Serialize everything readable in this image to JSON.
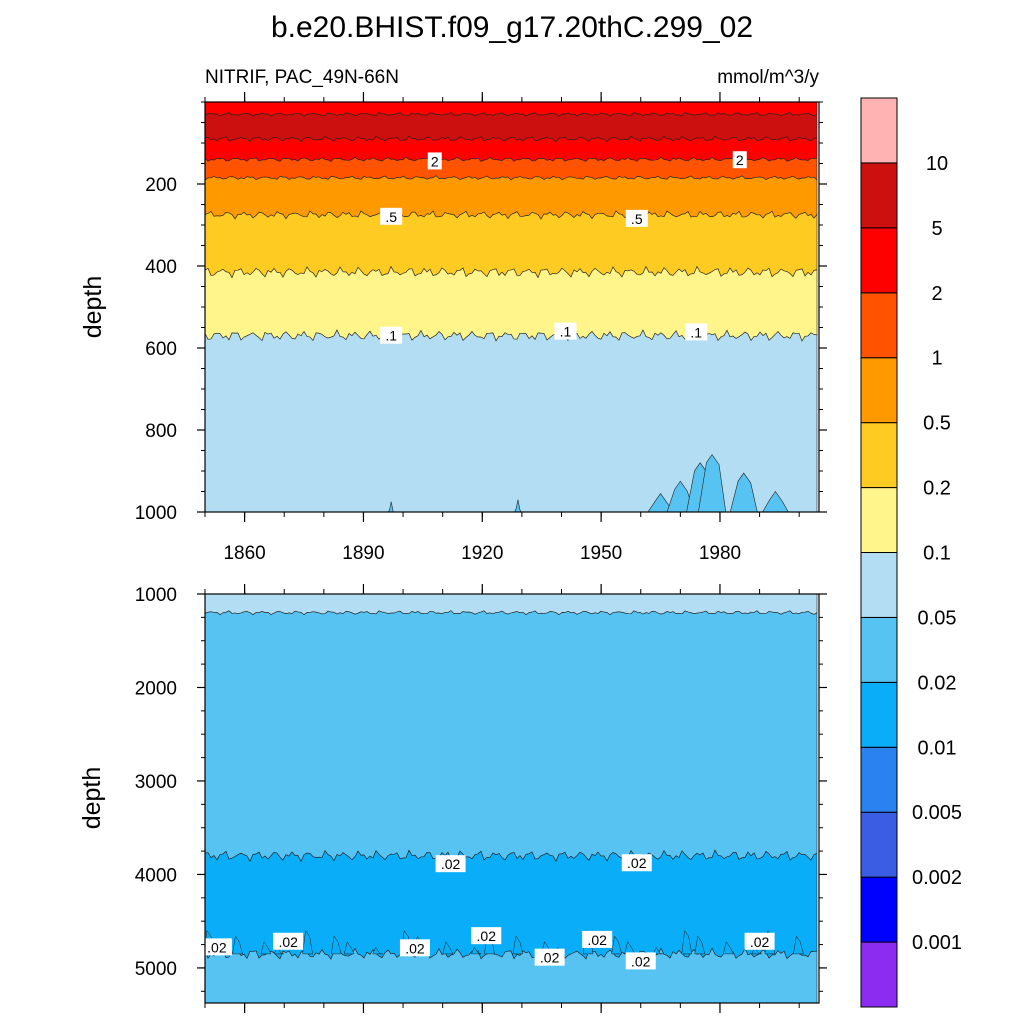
{
  "title": "b.e20.BHIST.f09_g17.20thC.299_02",
  "variable_label": "NITRIF, PAC_49N-66N",
  "units_label": "mmol/m^3/y",
  "colors": {
    "c0": "#8b2cf0",
    "c1": "#0000ff",
    "c2": "#3a5de4",
    "c3": "#2a82f0",
    "c4": "#0aaef8",
    "c5": "#56c3f2",
    "c6": "#b3ddf2",
    "c7": "#fff58a",
    "c8": "#fecb22",
    "c9": "#ff9900",
    "c10": "#ff5300",
    "c11": "#ff0000",
    "c12": "#cc0f0f",
    "c13": "#ffb3b3"
  },
  "chart_data": [
    {
      "type": "heatmap",
      "panel": "upper",
      "ylabel": "depth",
      "xlim": [
        1850,
        2005
      ],
      "ylim": [
        1000,
        0
      ],
      "x_ticks": [
        1860,
        1890,
        1920,
        1950,
        1980
      ],
      "y_ticks": [
        200,
        400,
        600,
        800,
        1000
      ],
      "contour_bands": [
        {
          "between": [
            "surface",
            30
          ],
          "color": "c11"
        },
        {
          "between": [
            30,
            90
          ],
          "color": "c12"
        },
        {
          "between": [
            90,
            140
          ],
          "color": "c11"
        },
        {
          "between": [
            140,
            185
          ],
          "color": "c10"
        },
        {
          "between": [
            185,
            275
          ],
          "color": "c9"
        },
        {
          "between": [
            275,
            415
          ],
          "color": "c8"
        },
        {
          "between": [
            415,
            570
          ],
          "color": "c7"
        },
        {
          "between": [
            570,
            1000
          ],
          "color": "c6"
        }
      ],
      "contour_labels": [
        {
          "text": "2",
          "x": 1908,
          "depth": 145
        },
        {
          "text": "2",
          "x": 1985,
          "depth": 142
        },
        {
          "text": ".5",
          "x": 1897,
          "depth": 280
        },
        {
          "text": ".5",
          "x": 1959,
          "depth": 285
        },
        {
          "text": ".1",
          "x": 1897,
          "depth": 570
        },
        {
          "text": ".1",
          "x": 1941,
          "depth": 560
        },
        {
          "text": ".1",
          "x": 1974,
          "depth": 562
        }
      ]
    },
    {
      "type": "heatmap",
      "panel": "lower",
      "ylabel": "depth",
      "xlim": [
        1850,
        2005
      ],
      "ylim": [
        5375,
        1000
      ],
      "y_ticks": [
        1000,
        2000,
        3000,
        4000,
        5000
      ],
      "contour_bands": [
        {
          "between": [
            1000,
            1200
          ],
          "color": "c6"
        },
        {
          "between": [
            1200,
            3800
          ],
          "color": "c5"
        },
        {
          "between": [
            3800,
            4850
          ],
          "color": "c4"
        },
        {
          "between": [
            4850,
            5375
          ],
          "color": "c5"
        }
      ],
      "contour_labels": [
        {
          "text": ".02",
          "x": 1912,
          "depth": 3890
        },
        {
          "text": ".02",
          "x": 1959,
          "depth": 3880
        },
        {
          "text": ".02",
          "x": 1853,
          "depth": 4780
        },
        {
          "text": ".02",
          "x": 1871,
          "depth": 4720
        },
        {
          "text": ".02",
          "x": 1903,
          "depth": 4790
        },
        {
          "text": ".02",
          "x": 1921,
          "depth": 4660
        },
        {
          "text": ".02",
          "x": 1937,
          "depth": 4890
        },
        {
          "text": ".02",
          "x": 1949,
          "depth": 4700
        },
        {
          "text": ".02",
          "x": 1960,
          "depth": 4930
        },
        {
          "text": ".02",
          "x": 1990,
          "depth": 4720
        }
      ]
    }
  ],
  "colorbar": {
    "colors": [
      "c0",
      "c1",
      "c2",
      "c3",
      "c4",
      "c5",
      "c6",
      "c7",
      "c8",
      "c9",
      "c10",
      "c11",
      "c12",
      "c13"
    ],
    "labels": [
      "0.001",
      "0.002",
      "0.005",
      "0.01",
      "0.02",
      "0.05",
      "0.1",
      "0.2",
      "0.5",
      "1",
      "2",
      "5",
      "10"
    ]
  }
}
